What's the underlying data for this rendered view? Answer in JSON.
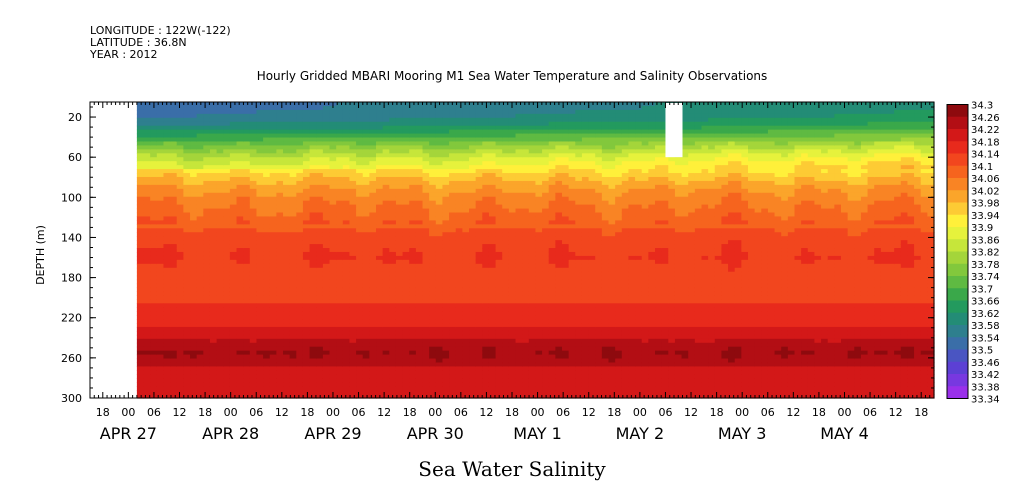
{
  "header": {
    "longitude": "LONGITUDE : 122W(-122)",
    "latitude": "LATITUDE : 36.8N",
    "year": "YEAR : 2012"
  },
  "chart_data": {
    "type": "heatmap",
    "title": "Hourly Gridded MBARI Mooring M1 Sea Water Temperature and Salinity Observations",
    "xlabel": "Sea Water Salinity",
    "ylabel": "DEPTH (m)",
    "y_ticks": [
      "20",
      "60",
      "100",
      "140",
      "180",
      "220",
      "260",
      "300"
    ],
    "y_range": [
      300,
      5
    ],
    "y_reversed": true,
    "x_hour_ticks": [
      "18",
      "00",
      "06",
      "12",
      "18",
      "00",
      "06",
      "12",
      "18",
      "00",
      "06",
      "12",
      "18",
      "00",
      "06",
      "12",
      "18",
      "00",
      "06",
      "12",
      "18",
      "00",
      "06",
      "12",
      "18",
      "00",
      "06",
      "12",
      "18",
      "00",
      "06",
      "12",
      "18"
    ],
    "x_date_labels": [
      {
        "label": "APR 27",
        "date": "2012-04-27T00:00"
      },
      {
        "label": "APR 28",
        "date": "2012-04-28T00:00"
      },
      {
        "label": "APR 29",
        "date": "2012-04-29T00:00"
      },
      {
        "label": "APR 30",
        "date": "2012-04-30T00:00"
      },
      {
        "label": "MAY  1",
        "date": "2012-05-01T00:00"
      },
      {
        "label": "MAY  2",
        "date": "2012-05-02T00:00"
      },
      {
        "label": "MAY  3",
        "date": "2012-05-03T00:00"
      },
      {
        "label": "MAY  4",
        "date": "2012-05-04T00:00"
      }
    ],
    "x_range": [
      "2012-04-26T15:00",
      "2012-05-04T21:00"
    ],
    "data_start": "2012-04-27T02:00",
    "missing_block": {
      "x": [
        "2012-05-02T06:00",
        "2012-05-02T10:00"
      ],
      "depth": [
        5,
        60
      ]
    },
    "salinity_profile": [
      {
        "depth": 10,
        "value": 33.57
      },
      {
        "depth": 20,
        "value": 33.59
      },
      {
        "depth": 30,
        "value": 33.64
      },
      {
        "depth": 40,
        "value": 33.72
      },
      {
        "depth": 50,
        "value": 33.8
      },
      {
        "depth": 60,
        "value": 33.87
      },
      {
        "depth": 70,
        "value": 33.92
      },
      {
        "depth": 80,
        "value": 33.97
      },
      {
        "depth": 90,
        "value": 34.01
      },
      {
        "depth": 100,
        "value": 34.04
      },
      {
        "depth": 120,
        "value": 34.08
      },
      {
        "depth": 140,
        "value": 34.12
      },
      {
        "depth": 160,
        "value": 34.14
      },
      {
        "depth": 180,
        "value": 34.11
      },
      {
        "depth": 200,
        "value": 34.13
      },
      {
        "depth": 220,
        "value": 34.16
      },
      {
        "depth": 240,
        "value": 34.21
      },
      {
        "depth": 255,
        "value": 34.25
      },
      {
        "depth": 270,
        "value": 34.22
      },
      {
        "depth": 285,
        "value": 34.19
      },
      {
        "depth": 300,
        "value": 34.18
      }
    ],
    "colorbar": {
      "labels": [
        "34.3",
        "34.26",
        "34.22",
        "34.18",
        "34.14",
        "34.1",
        "34.06",
        "34.02",
        "33.98",
        "33.94",
        "33.9",
        "33.86",
        "33.82",
        "33.78",
        "33.74",
        "33.7",
        "33.66",
        "33.62",
        "33.58",
        "33.54",
        "33.5",
        "33.46",
        "33.42",
        "33.38",
        "33.34"
      ],
      "colors": [
        "#8e0a0e",
        "#b30e14",
        "#d31818",
        "#e82a1c",
        "#f2461e",
        "#f6641e",
        "#f98424",
        "#fba52a",
        "#fdcb34",
        "#fff03a",
        "#e6f23c",
        "#c6e63a",
        "#a4d53a",
        "#82c83c",
        "#5fba42",
        "#3aa84a",
        "#239a5e",
        "#238c76",
        "#2e7f8e",
        "#3a6ea8",
        "#4a55c2",
        "#5c40d4",
        "#7838e0",
        "#9a30ea"
      ]
    },
    "grid": false,
    "legend": "right colorbar"
  }
}
